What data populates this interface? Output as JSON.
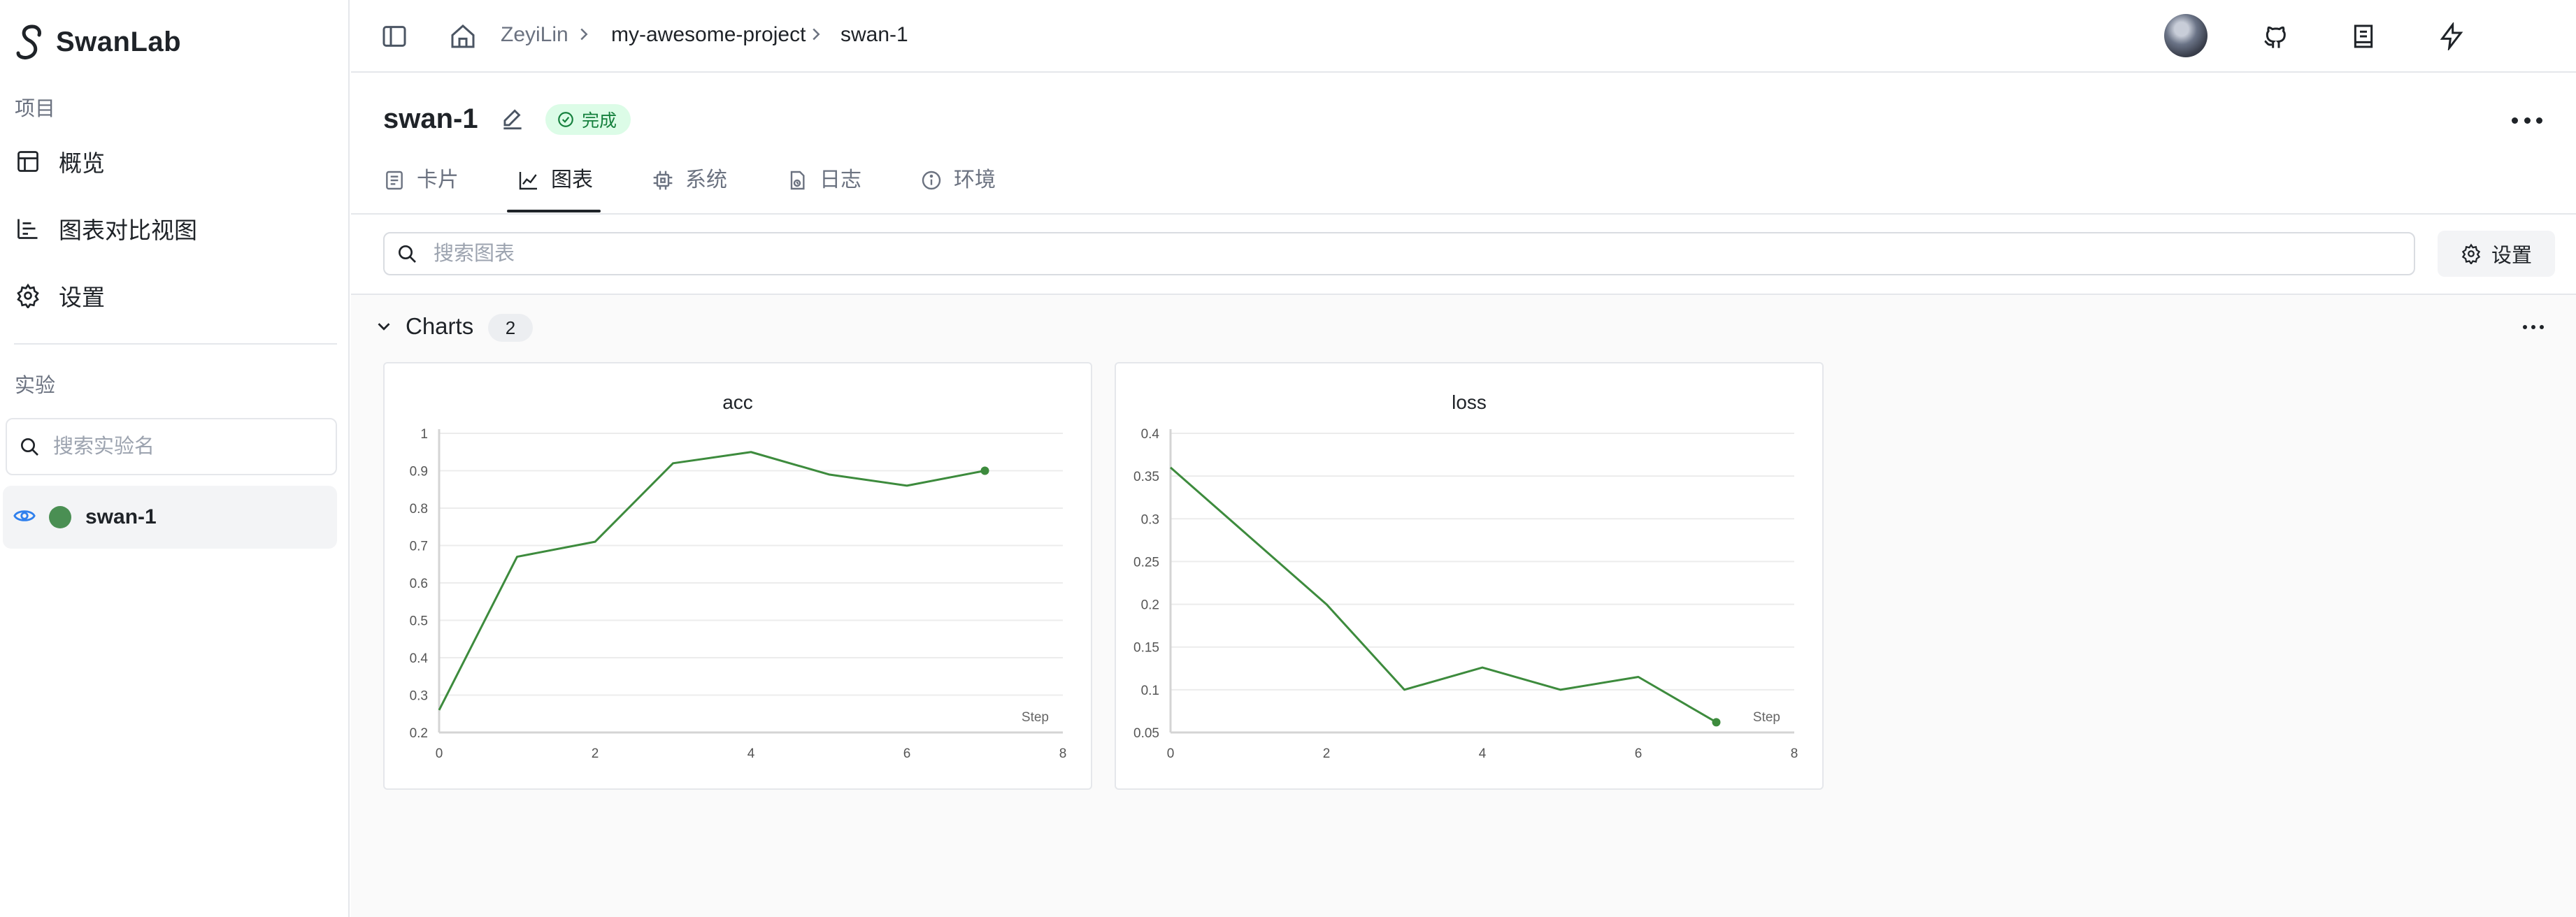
{
  "brand": {
    "name": "SwanLab"
  },
  "sidebar": {
    "project_label": "项目",
    "items": [
      {
        "label": "概览",
        "icon": "table-icon"
      },
      {
        "label": "图表对比视图",
        "icon": "bar-chart-icon"
      },
      {
        "label": "设置",
        "icon": "gear-icon"
      }
    ],
    "experiments_label": "实验",
    "search_placeholder": "搜索实验名",
    "experiments": [
      {
        "name": "swan-1",
        "color": "#4a8f53"
      }
    ]
  },
  "header": {
    "breadcrumb": [
      "ZeyiLin",
      "my-awesome-project",
      "swan-1"
    ],
    "icons": [
      "sidebar-toggle-icon",
      "home-icon",
      "github-icon",
      "docs-icon",
      "lightning-icon",
      "avatar"
    ]
  },
  "run": {
    "title": "swan-1",
    "status": "完成",
    "status_color": "#15803d"
  },
  "tabs": [
    {
      "label": "卡片",
      "icon": "card-icon",
      "active": false
    },
    {
      "label": "图表",
      "icon": "line-chart-icon",
      "active": true
    },
    {
      "label": "系统",
      "icon": "cpu-icon",
      "active": false
    },
    {
      "label": "日志",
      "icon": "log-icon",
      "active": false
    },
    {
      "label": "环境",
      "icon": "info-icon",
      "active": false
    }
  ],
  "toolbar": {
    "search_placeholder": "搜索图表",
    "settings_label": "设置"
  },
  "group": {
    "title": "Charts",
    "count": "2"
  },
  "chart_data": [
    {
      "type": "line",
      "title": "acc",
      "xlabel": "Step",
      "ylabel": "",
      "x": [
        0,
        1,
        2,
        3,
        4,
        5,
        6,
        7
      ],
      "series": [
        {
          "values": [
            0.26,
            0.67,
            0.71,
            0.92,
            0.95,
            0.89,
            0.86,
            0.9
          ],
          "color": "#3d8b3d"
        }
      ],
      "xlim": [
        0,
        8
      ],
      "ylim": [
        0.2,
        1
      ],
      "xticks": [
        "0",
        "2",
        "4",
        "6",
        "8"
      ],
      "yticks": [
        "0.2",
        "0.3",
        "0.4",
        "0.5",
        "0.6",
        "0.7",
        "0.8",
        "0.9",
        "1"
      ],
      "grid": true
    },
    {
      "type": "line",
      "title": "loss",
      "xlabel": "Step",
      "ylabel": "",
      "x": [
        0,
        1,
        2,
        3,
        4,
        5,
        6,
        7
      ],
      "series": [
        {
          "values": [
            0.36,
            0.28,
            0.2,
            0.1,
            0.126,
            0.1,
            0.115,
            0.062
          ],
          "color": "#3d8b3d"
        }
      ],
      "xlim": [
        0,
        8
      ],
      "ylim": [
        0.05,
        0.4
      ],
      "xticks": [
        "0",
        "2",
        "4",
        "6",
        "8"
      ],
      "yticks": [
        "0.05",
        "0.1",
        "0.15",
        "0.2",
        "0.25",
        "0.3",
        "0.35",
        "0.4"
      ],
      "grid": true
    }
  ]
}
